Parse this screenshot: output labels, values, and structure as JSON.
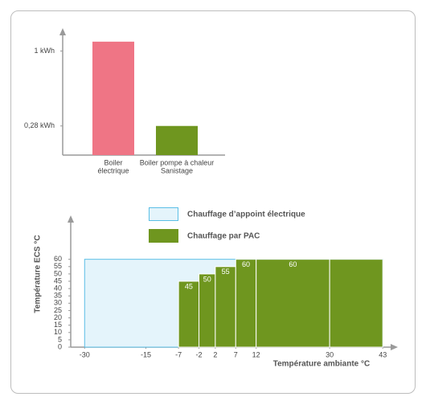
{
  "chart_data": [
    {
      "type": "bar",
      "categories": [
        [
          "Boiler",
          "électrique"
        ],
        [
          "Boiler pompe à chaleur",
          "Sanistage"
        ]
      ],
      "values": [
        1.09,
        0.28
      ],
      "colors": [
        "#ef7585",
        "#6f961f"
      ],
      "ylim": [
        0,
        1.22
      ],
      "yticks": [
        {
          "value": 1,
          "label": "1 kWh"
        },
        {
          "value": 0.28,
          "label": "0,28 kWh"
        }
      ]
    },
    {
      "type": "step",
      "xlabel": "Température ambiante °C",
      "ylabel": "Température ECS °C",
      "series": [
        {
          "name": "Chauffage d’appoint électrique",
          "color": "#e4f4fb",
          "edge_color": "#5bbfe6",
          "bins": [
            -30,
            43
          ],
          "values": [
            60
          ]
        },
        {
          "name": "Chauffage par PAC",
          "color": "#6f961f",
          "edge_color": "#ffffff",
          "bins": [
            -7,
            -2,
            2,
            7,
            12,
            30,
            43
          ],
          "values": [
            45,
            50,
            55,
            60,
            60,
            60
          ],
          "value_labels": [
            "45",
            "50",
            "55",
            "60",
            "60",
            null
          ]
        }
      ],
      "xlim": [
        -33.4,
        46.7
      ],
      "ylim": [
        0,
        90
      ],
      "xticks": [
        -30,
        -15,
        -7,
        -2,
        2,
        7,
        12,
        30,
        43
      ],
      "yticks": [
        0,
        5,
        10,
        15,
        20,
        25,
        30,
        35,
        40,
        45,
        50,
        55,
        60
      ]
    }
  ]
}
